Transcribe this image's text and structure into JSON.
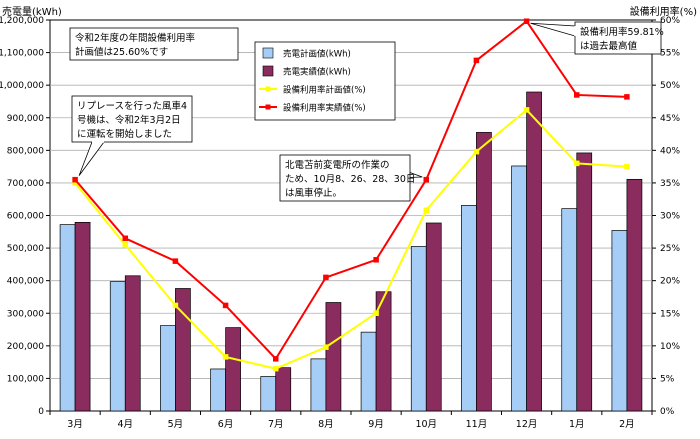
{
  "chart_data": {
    "type": "bar",
    "y_left_label": "売電量(kWh)",
    "y_right_label": "設備利用率(%)",
    "y_left_range": [
      0,
      1200000
    ],
    "y_left_ticks": [
      "0",
      "100,000",
      "200,000",
      "300,000",
      "400,000",
      "500,000",
      "600,000",
      "700,000",
      "800,000",
      "900,000",
      "1,000,000",
      "1,100,000",
      "1,200,000"
    ],
    "y_right_range": [
      0,
      60
    ],
    "y_right_ticks": [
      "0%",
      "5%",
      "10%",
      "15%",
      "20%",
      "25%",
      "30%",
      "35%",
      "40%",
      "45%",
      "50%",
      "55%",
      "60%"
    ],
    "categories": [
      "3月",
      "4月",
      "5月",
      "6月",
      "7月",
      "8月",
      "9月",
      "10月",
      "11月",
      "12月",
      "1月",
      "2月"
    ],
    "grid": true,
    "legend_position": "top-center",
    "series": [
      {
        "name": "売電計画値(kWh)",
        "kind": "bar",
        "axis": "left",
        "color": "#a6cdf5",
        "values": [
          572000,
          397000,
          262000,
          129000,
          106000,
          160000,
          242000,
          505000,
          631000,
          752000,
          621000,
          554000
        ]
      },
      {
        "name": "売電実績値(kWh)",
        "kind": "bar",
        "axis": "left",
        "color": "#8b2c5f",
        "values": [
          579000,
          415000,
          376000,
          256000,
          133000,
          333000,
          366000,
          577000,
          855000,
          979000,
          792000,
          711000
        ]
      },
      {
        "name": "設備利用率計画値(%)",
        "kind": "line",
        "axis": "right",
        "color": "#ffff00",
        "values": [
          35.0,
          25.5,
          16.2,
          8.3,
          6.5,
          9.8,
          15.0,
          30.8,
          39.8,
          46.2,
          38.0,
          37.5
        ]
      },
      {
        "name": "設備利用率実績値(%)",
        "kind": "line",
        "axis": "right",
        "color": "#ff0000",
        "values": [
          35.5,
          26.5,
          23.0,
          16.2,
          8.0,
          20.5,
          23.2,
          35.5,
          53.8,
          59.81,
          48.5,
          48.2
        ]
      }
    ],
    "annotations": [
      {
        "id": "fy-plan",
        "lines": [
          "令和2年度の年間設備利用率",
          "計画値は25.60%です"
        ]
      },
      {
        "id": "replace",
        "lines": [
          "リプレースを行った風車4",
          "号機は、令和2年3月2日",
          "に運転を開始しました"
        ]
      },
      {
        "id": "substation",
        "lines": [
          "北電苫前変電所の作業の",
          "ため、10月8、26、28、30日",
          "は風車停止。"
        ]
      },
      {
        "id": "record",
        "lines": [
          "設備利用率59.81%",
          "は過去最高値"
        ]
      }
    ]
  }
}
